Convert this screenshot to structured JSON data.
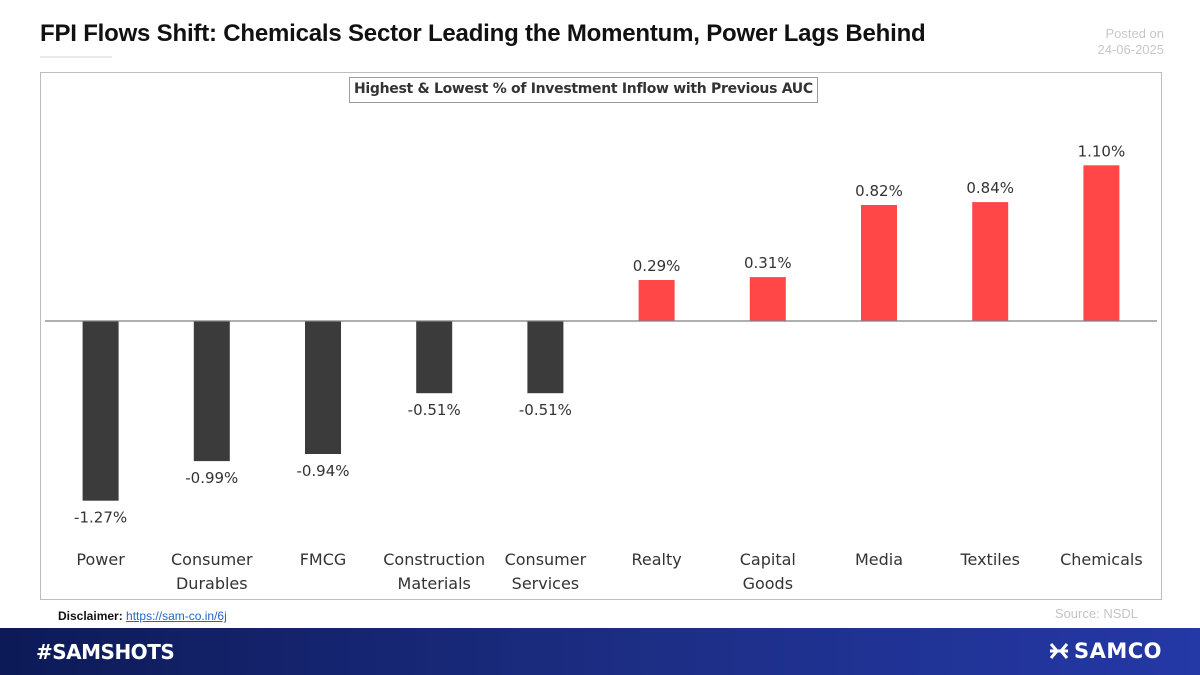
{
  "header": {
    "title": "FPI Flows Shift: Chemicals Sector Leading the Momentum, Power Lags Behind",
    "posted_label": "Posted on",
    "posted_date": "24-06-2025"
  },
  "chart_data": {
    "type": "bar",
    "title": "Highest & Lowest % of Investment Inflow with Previous AUC",
    "categories": [
      [
        "Power"
      ],
      [
        "Consumer",
        "Durables"
      ],
      [
        "FMCG"
      ],
      [
        "Construction",
        "Materials"
      ],
      [
        "Consumer",
        "Services"
      ],
      [
        "Realty"
      ],
      [
        "Capital",
        "Goods"
      ],
      [
        "Media"
      ],
      [
        "Textiles"
      ],
      [
        "Chemicals"
      ]
    ],
    "values": [
      -1.27,
      -0.99,
      -0.94,
      -0.51,
      -0.51,
      0.29,
      0.31,
      0.82,
      0.84,
      1.1
    ],
    "labels": [
      "-1.27%",
      "-0.99%",
      "-0.94%",
      "-0.51%",
      "-0.51%",
      "0.29%",
      "0.31%",
      "0.82%",
      "0.84%",
      "1.10%"
    ],
    "xlabel": "",
    "ylabel": "",
    "ylim": [
      -1.27,
      1.1
    ],
    "grid": false,
    "legend": "none",
    "colors": {
      "positive": "#ff4747",
      "negative": "#3b3b3b",
      "axis": "#7f7f7f"
    }
  },
  "footer": {
    "disclaimer_label": "Disclaimer:",
    "disclaimer_link": "https://sam-co.in/6j",
    "source": "Source: NSDL",
    "hashtag": "#SAMSHOTS",
    "brand": "SAMCO"
  },
  "colors": {
    "footer_bar": "#1d2e86",
    "brand_text": "#ffffff"
  }
}
